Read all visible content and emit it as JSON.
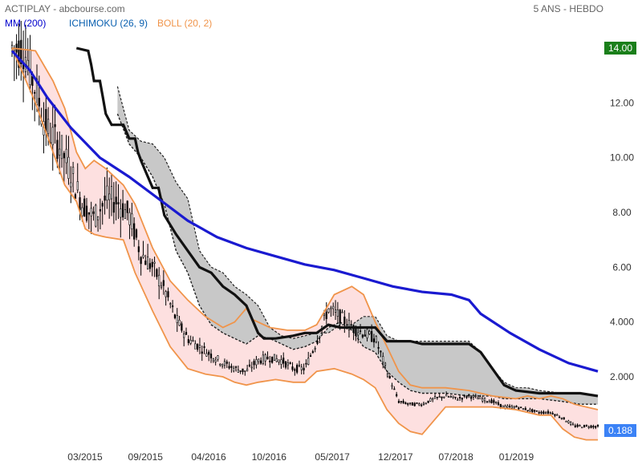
{
  "header": {
    "title": "ACTIPLAY - abcbourse.com",
    "period": "5 ANS - HEBDO",
    "legend": [
      {
        "label": "MM (200)",
        "color": "#0000cc"
      },
      {
        "label": "ICHIMOKU (26, 9)",
        "color": "#0a60b0"
      },
      {
        "label": "BOLL (20, 2)",
        "color": "#f0944a"
      }
    ]
  },
  "colors": {
    "ma": "#1a1ad0",
    "boll_line": "#f0944a",
    "boll_fill": "#fde0e0",
    "cloud_fill": "#c8c8c8",
    "kijun": "#111111",
    "price": "#000000",
    "label_high": "#1a7f1a",
    "label_last": "#3b82f6"
  },
  "chart_data": {
    "type": "candlestick",
    "x_axis": {
      "ticks": [
        "03/2015",
        "09/2015",
        "04/2016",
        "10/2016",
        "05/2017",
        "12/2017",
        "07/2018",
        "01/2019"
      ],
      "tick_t": [
        0.1416,
        0.2588,
        0.3814,
        0.4986,
        0.6213,
        0.7439,
        0.8611,
        0.9783
      ]
    },
    "y_axis": {
      "ticks": [
        2.0,
        4.0,
        6.0,
        8.0,
        10.0,
        12.0,
        14.0
      ],
      "tick_labels": [
        "2.000",
        "4.000",
        "6.00",
        "8.00",
        "10.00",
        "12.00",
        "14.00"
      ],
      "range": [
        0,
        15.5
      ]
    },
    "price_labels": {
      "high": "14.00",
      "last": "0.188",
      "high_value": 14.0,
      "last_value": 0.188
    },
    "price": [
      [
        0,
        14
      ],
      [
        0.02,
        14
      ],
      [
        0.04,
        12.5
      ],
      [
        0.06,
        11
      ],
      [
        0.08,
        10.5
      ],
      [
        0.1,
        9.5
      ],
      [
        0.12,
        8.3
      ],
      [
        0.14,
        7.8
      ],
      [
        0.16,
        8.5
      ],
      [
        0.18,
        8.4
      ],
      [
        0.2,
        7.9
      ],
      [
        0.22,
        6.5
      ],
      [
        0.24,
        6
      ],
      [
        0.26,
        5.2
      ],
      [
        0.28,
        4.1
      ],
      [
        0.3,
        3.4
      ],
      [
        0.32,
        3.1
      ],
      [
        0.34,
        2.8
      ],
      [
        0.36,
        2.5
      ],
      [
        0.38,
        2.3
      ],
      [
        0.4,
        2.2
      ],
      [
        0.42,
        2.6
      ],
      [
        0.44,
        2.7
      ],
      [
        0.46,
        2.6
      ],
      [
        0.48,
        2.3
      ],
      [
        0.5,
        2.3
      ],
      [
        0.52,
        3.3
      ],
      [
        0.54,
        4.5
      ],
      [
        0.56,
        4.2
      ],
      [
        0.58,
        3.8
      ],
      [
        0.6,
        3.6
      ],
      [
        0.62,
        3.4
      ],
      [
        0.64,
        2.2
      ],
      [
        0.66,
        1.1
      ],
      [
        0.68,
        1.0
      ],
      [
        0.7,
        1.0
      ],
      [
        0.72,
        1.2
      ],
      [
        0.74,
        1.3
      ],
      [
        0.76,
        1.2
      ],
      [
        0.78,
        1.3
      ],
      [
        0.8,
        1.2
      ],
      [
        0.82,
        1.1
      ],
      [
        0.84,
        0.9
      ],
      [
        0.86,
        0.9
      ],
      [
        0.88,
        0.8
      ],
      [
        0.9,
        0.7
      ],
      [
        0.92,
        0.7
      ],
      [
        0.94,
        0.5
      ],
      [
        0.96,
        0.2
      ],
      [
        0.98,
        0.2
      ],
      [
        1.0,
        0.188
      ]
    ],
    "series": [
      {
        "name": "MM (200)",
        "key": "ma",
        "points": [
          [
            0,
            13.9
          ],
          [
            0.03,
            13.2
          ],
          [
            0.06,
            12.2
          ],
          [
            0.1,
            11.1
          ],
          [
            0.15,
            10.0
          ],
          [
            0.2,
            9.3
          ],
          [
            0.25,
            8.5
          ],
          [
            0.3,
            7.7
          ],
          [
            0.35,
            7.1
          ],
          [
            0.4,
            6.7
          ],
          [
            0.45,
            6.4
          ],
          [
            0.5,
            6.1
          ],
          [
            0.55,
            5.9
          ],
          [
            0.6,
            5.6
          ],
          [
            0.65,
            5.3
          ],
          [
            0.7,
            5.1
          ],
          [
            0.75,
            5.0
          ],
          [
            0.78,
            4.8
          ],
          [
            0.8,
            4.3
          ],
          [
            0.85,
            3.6
          ],
          [
            0.9,
            3.0
          ],
          [
            0.95,
            2.5
          ],
          [
            1.0,
            2.2
          ]
        ]
      },
      {
        "name": "BOLL upper",
        "key": "boll_up",
        "points": [
          [
            0,
            14
          ],
          [
            0.04,
            13.9
          ],
          [
            0.07,
            12.8
          ],
          [
            0.09,
            11.8
          ],
          [
            0.11,
            10.2
          ],
          [
            0.125,
            9.6
          ],
          [
            0.14,
            9.9
          ],
          [
            0.16,
            9.6
          ],
          [
            0.19,
            9.0
          ],
          [
            0.21,
            8.3
          ],
          [
            0.24,
            6.7
          ],
          [
            0.27,
            5.5
          ],
          [
            0.3,
            4.8
          ],
          [
            0.33,
            4.2
          ],
          [
            0.36,
            3.8
          ],
          [
            0.38,
            4.0
          ],
          [
            0.4,
            4.5
          ],
          [
            0.41,
            4.1
          ],
          [
            0.44,
            3.8
          ],
          [
            0.47,
            3.7
          ],
          [
            0.5,
            3.7
          ],
          [
            0.52,
            3.9
          ],
          [
            0.55,
            5.0
          ],
          [
            0.58,
            5.3
          ],
          [
            0.6,
            5.0
          ],
          [
            0.62,
            4.0
          ],
          [
            0.64,
            3.1
          ],
          [
            0.66,
            2.2
          ],
          [
            0.68,
            1.7
          ],
          [
            0.7,
            1.6
          ],
          [
            0.74,
            1.6
          ],
          [
            0.78,
            1.5
          ],
          [
            0.82,
            1.3
          ],
          [
            0.86,
            1.2
          ],
          [
            0.88,
            1.3
          ],
          [
            0.9,
            1.2
          ],
          [
            0.92,
            1.3
          ],
          [
            0.94,
            1.2
          ],
          [
            0.96,
            1.0
          ],
          [
            1.0,
            0.8
          ]
        ]
      },
      {
        "name": "BOLL lower",
        "key": "boll_lo",
        "points": [
          [
            0,
            14
          ],
          [
            0.04,
            12.0
          ],
          [
            0.07,
            10.2
          ],
          [
            0.09,
            9.0
          ],
          [
            0.11,
            8.4
          ],
          [
            0.125,
            7.4
          ],
          [
            0.14,
            7.2
          ],
          [
            0.16,
            7.1
          ],
          [
            0.19,
            7.0
          ],
          [
            0.21,
            5.8
          ],
          [
            0.24,
            4.4
          ],
          [
            0.27,
            3.1
          ],
          [
            0.3,
            2.3
          ],
          [
            0.33,
            2.1
          ],
          [
            0.36,
            2.0
          ],
          [
            0.38,
            1.8
          ],
          [
            0.4,
            1.7
          ],
          [
            0.42,
            1.8
          ],
          [
            0.45,
            1.9
          ],
          [
            0.48,
            1.8
          ],
          [
            0.5,
            1.8
          ],
          [
            0.52,
            2.2
          ],
          [
            0.55,
            2.3
          ],
          [
            0.58,
            2.1
          ],
          [
            0.6,
            1.9
          ],
          [
            0.62,
            1.6
          ],
          [
            0.64,
            0.8
          ],
          [
            0.66,
            0.3
          ],
          [
            0.68,
            0.0
          ],
          [
            0.7,
            -0.1
          ],
          [
            0.72,
            0.4
          ],
          [
            0.74,
            0.9
          ],
          [
            0.78,
            0.9
          ],
          [
            0.82,
            0.9
          ],
          [
            0.86,
            0.8
          ],
          [
            0.88,
            0.7
          ],
          [
            0.9,
            0.6
          ],
          [
            0.92,
            0.6
          ],
          [
            0.94,
            0.1
          ],
          [
            0.96,
            -0.2
          ],
          [
            0.98,
            -0.3
          ],
          [
            1.0,
            -0.3
          ]
        ]
      },
      {
        "name": "Kijun",
        "key": "kijun",
        "points": [
          [
            0.11,
            14.0
          ],
          [
            0.13,
            13.9
          ],
          [
            0.135,
            13.4
          ],
          [
            0.14,
            12.8
          ],
          [
            0.15,
            12.8
          ],
          [
            0.155,
            12.2
          ],
          [
            0.16,
            11.6
          ],
          [
            0.17,
            11.2
          ],
          [
            0.19,
            11.2
          ],
          [
            0.2,
            10.7
          ],
          [
            0.21,
            10.7
          ],
          [
            0.215,
            10.2
          ],
          [
            0.22,
            9.9
          ],
          [
            0.23,
            9.4
          ],
          [
            0.24,
            8.9
          ],
          [
            0.25,
            8.9
          ],
          [
            0.255,
            8.4
          ],
          [
            0.26,
            7.9
          ],
          [
            0.28,
            7.2
          ],
          [
            0.3,
            6.6
          ],
          [
            0.32,
            6.0
          ],
          [
            0.34,
            5.8
          ],
          [
            0.36,
            5.3
          ],
          [
            0.38,
            5.0
          ],
          [
            0.4,
            4.6
          ],
          [
            0.42,
            3.6
          ],
          [
            0.43,
            3.4
          ],
          [
            0.45,
            3.4
          ],
          [
            0.48,
            3.5
          ],
          [
            0.5,
            3.6
          ],
          [
            0.52,
            3.6
          ],
          [
            0.54,
            3.9
          ],
          [
            0.56,
            3.8
          ],
          [
            0.58,
            3.8
          ],
          [
            0.6,
            3.8
          ],
          [
            0.62,
            3.8
          ],
          [
            0.64,
            3.3
          ],
          [
            0.66,
            3.3
          ],
          [
            0.68,
            3.3
          ],
          [
            0.7,
            3.2
          ],
          [
            0.74,
            3.2
          ],
          [
            0.78,
            3.2
          ],
          [
            0.8,
            2.9
          ],
          [
            0.82,
            2.3
          ],
          [
            0.84,
            1.7
          ],
          [
            0.86,
            1.5
          ],
          [
            0.9,
            1.4
          ],
          [
            0.94,
            1.4
          ],
          [
            0.97,
            1.4
          ],
          [
            1.0,
            1.3
          ]
        ]
      },
      {
        "name": "Cloud upper",
        "key": "cloud_up",
        "points": [
          [
            0.18,
            12.6
          ],
          [
            0.2,
            11.0
          ],
          [
            0.22,
            10.6
          ],
          [
            0.24,
            10.5
          ],
          [
            0.26,
            10.0
          ],
          [
            0.28,
            9.1
          ],
          [
            0.3,
            8.5
          ],
          [
            0.32,
            6.6
          ],
          [
            0.34,
            6.0
          ],
          [
            0.36,
            5.8
          ],
          [
            0.38,
            5.3
          ],
          [
            0.4,
            5.0
          ],
          [
            0.42,
            4.6
          ],
          [
            0.44,
            3.8
          ],
          [
            0.46,
            3.5
          ],
          [
            0.48,
            3.4
          ],
          [
            0.5,
            3.5
          ],
          [
            0.52,
            3.6
          ],
          [
            0.54,
            3.6
          ],
          [
            0.56,
            3.9
          ],
          [
            0.58,
            3.9
          ],
          [
            0.6,
            4.2
          ],
          [
            0.62,
            4.2
          ],
          [
            0.64,
            3.5
          ],
          [
            0.66,
            3.3
          ],
          [
            0.68,
            3.3
          ],
          [
            0.7,
            3.3
          ],
          [
            0.74,
            3.3
          ],
          [
            0.78,
            3.3
          ],
          [
            0.8,
            2.9
          ],
          [
            0.82,
            2.3
          ],
          [
            0.84,
            1.8
          ],
          [
            0.86,
            1.6
          ],
          [
            0.88,
            1.6
          ],
          [
            0.9,
            1.5
          ],
          [
            0.94,
            1.4
          ],
          [
            0.97,
            1.4
          ],
          [
            1.0,
            1.3
          ]
        ]
      },
      {
        "name": "Cloud lower",
        "key": "cloud_lo",
        "points": [
          [
            0.18,
            11.6
          ],
          [
            0.2,
            10.5
          ],
          [
            0.22,
            10.0
          ],
          [
            0.24,
            9.3
          ],
          [
            0.26,
            8.3
          ],
          [
            0.28,
            6.6
          ],
          [
            0.3,
            5.8
          ],
          [
            0.32,
            4.6
          ],
          [
            0.34,
            3.9
          ],
          [
            0.36,
            3.6
          ],
          [
            0.38,
            3.4
          ],
          [
            0.4,
            3.2
          ],
          [
            0.42,
            3.5
          ],
          [
            0.44,
            3.4
          ],
          [
            0.46,
            3.2
          ],
          [
            0.48,
            3.0
          ],
          [
            0.5,
            3.1
          ],
          [
            0.52,
            3.3
          ],
          [
            0.54,
            3.8
          ],
          [
            0.56,
            4.0
          ],
          [
            0.58,
            3.7
          ],
          [
            0.6,
            3.1
          ],
          [
            0.62,
            2.9
          ],
          [
            0.64,
            2.2
          ],
          [
            0.66,
            1.8
          ],
          [
            0.68,
            1.5
          ],
          [
            0.7,
            1.4
          ],
          [
            0.74,
            1.4
          ],
          [
            0.78,
            1.3
          ],
          [
            0.8,
            1.3
          ],
          [
            0.82,
            1.3
          ],
          [
            0.84,
            1.2
          ],
          [
            0.86,
            1.2
          ],
          [
            0.88,
            1.2
          ],
          [
            0.9,
            1.2
          ],
          [
            0.94,
            1.1
          ],
          [
            0.97,
            1.0
          ],
          [
            1.0,
            1.0
          ]
        ]
      }
    ]
  }
}
